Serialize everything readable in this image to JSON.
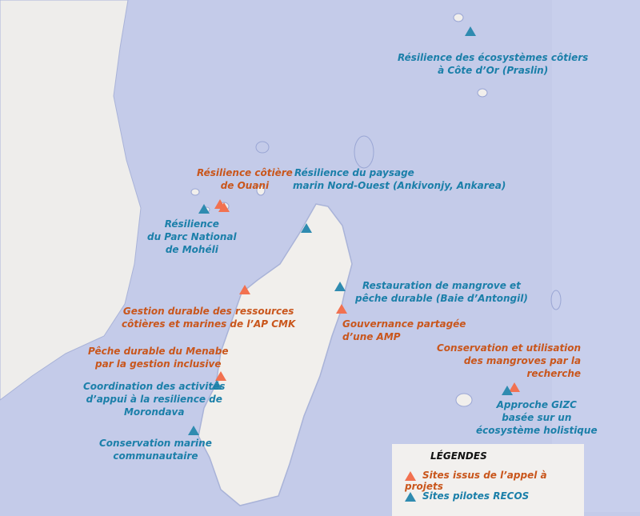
{
  "colors": {
    "sea": "#c4cbe9",
    "land": "#f1efec",
    "orange_text": "#c9561c",
    "blue_text": "#1b7fa9",
    "orange_marker": "#f27150",
    "blue_marker": "#2f8bb0"
  },
  "labels": {
    "praslin": [
      "Résilience des écosystèmes côtiers",
      "à Côte d’Or (Praslin)"
    ],
    "ouani": [
      "Résilience côtière",
      "de Ouani"
    ],
    "nord_ouest": [
      "Résilience du paysage",
      "marin Nord-Ouest (Ankivonjy, Ankarea)"
    ],
    "moheli": [
      "Résilience",
      "du Parc National",
      "de Mohéli"
    ],
    "antongil": [
      "Restauration de mangrove et",
      "pêche durable (Baie d’Antongil)"
    ],
    "cmk": [
      "Gestion durable des ressources",
      "côtières et marines de l’AP CMK"
    ],
    "amp": [
      "Gouvernance partagée",
      "d’une AMP"
    ],
    "menabe": [
      "Pêche durable du Menabe",
      "par la gestion inclusive"
    ],
    "mangroves": [
      "Conservation et utilisation",
      "des mangroves par la",
      "recherche"
    ],
    "morondava": [
      "Coordination des activités",
      "d’appui à la resilience de",
      "Morondava"
    ],
    "gizc": [
      "Approche GIZC",
      "basée sur un",
      "écosystème holistique"
    ],
    "communautaire": [
      "Conservation marine",
      "communautaire"
    ]
  },
  "legend": {
    "title": "LÉGENDES",
    "items": [
      {
        "label": "Sites issus de l’appel à projets",
        "marker": "orange-triangle"
      },
      {
        "label": "Sites pilotes RECOS",
        "marker": "blue-triangle"
      }
    ]
  }
}
